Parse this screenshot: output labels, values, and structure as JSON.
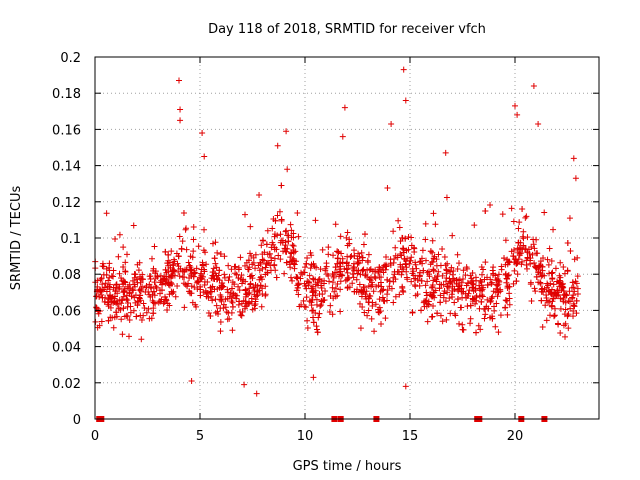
{
  "chart_data": {
    "type": "scatter",
    "title": "Day 118 of 2018, SRMTID for receiver vfch",
    "xlabel": "GPS time / hours",
    "ylabel": "SRMTID / TECUs",
    "xlim": [
      0,
      24
    ],
    "ylim": [
      0,
      0.2
    ],
    "xticks": [
      0,
      5,
      10,
      15,
      20
    ],
    "xtick_labels": [
      "0",
      "5",
      "10",
      "15",
      "20"
    ],
    "yticks": [
      0,
      0.02,
      0.04,
      0.06,
      0.08,
      0.1,
      0.12,
      0.14,
      0.16,
      0.18,
      0.2
    ],
    "ytick_labels": [
      "0",
      "0.02",
      "0.04",
      "0.06",
      "0.08",
      "0.1",
      "0.12",
      "0.14",
      "0.16",
      "0.18",
      "0.2"
    ],
    "grid": true,
    "marker": "+",
    "color": "#e00000",
    "series": [
      {
        "name": "SRMTID",
        "description": "Dense scatter of SRMTID values between about 0.015 and 0.19 TECU over 0–23 h GPS time; median ~0.07 with peaks near 4 h, 9 h, 12 h, 14.8 h and 20–21 h.",
        "x_range": [
          0,
          23
        ],
        "baseline": 0.07,
        "spread": 0.025,
        "peaks": [
          {
            "x": 4.0,
            "y": 0.187
          },
          {
            "x": 4.05,
            "y": 0.171
          },
          {
            "x": 4.05,
            "y": 0.165
          },
          {
            "x": 5.1,
            "y": 0.158
          },
          {
            "x": 5.2,
            "y": 0.145
          },
          {
            "x": 9.1,
            "y": 0.159
          },
          {
            "x": 8.7,
            "y": 0.151
          },
          {
            "x": 11.9,
            "y": 0.172
          },
          {
            "x": 11.8,
            "y": 0.156
          },
          {
            "x": 14.7,
            "y": 0.193
          },
          {
            "x": 14.8,
            "y": 0.176
          },
          {
            "x": 14.1,
            "y": 0.163
          },
          {
            "x": 16.7,
            "y": 0.147
          },
          {
            "x": 20.0,
            "y": 0.173
          },
          {
            "x": 20.1,
            "y": 0.168
          },
          {
            "x": 20.9,
            "y": 0.184
          },
          {
            "x": 21.1,
            "y": 0.163
          },
          {
            "x": 22.8,
            "y": 0.144
          },
          {
            "x": 22.9,
            "y": 0.133
          }
        ],
        "lows": [
          {
            "x": 7.7,
            "y": 0.014
          },
          {
            "x": 7.1,
            "y": 0.019
          },
          {
            "x": 14.8,
            "y": 0.018
          },
          {
            "x": 10.4,
            "y": 0.023
          },
          {
            "x": 4.6,
            "y": 0.021
          }
        ],
        "zero_values_x": [
          0.2,
          0.3,
          11.4,
          11.7,
          13.4,
          18.2,
          18.3,
          20.3,
          21.4
        ]
      }
    ]
  }
}
